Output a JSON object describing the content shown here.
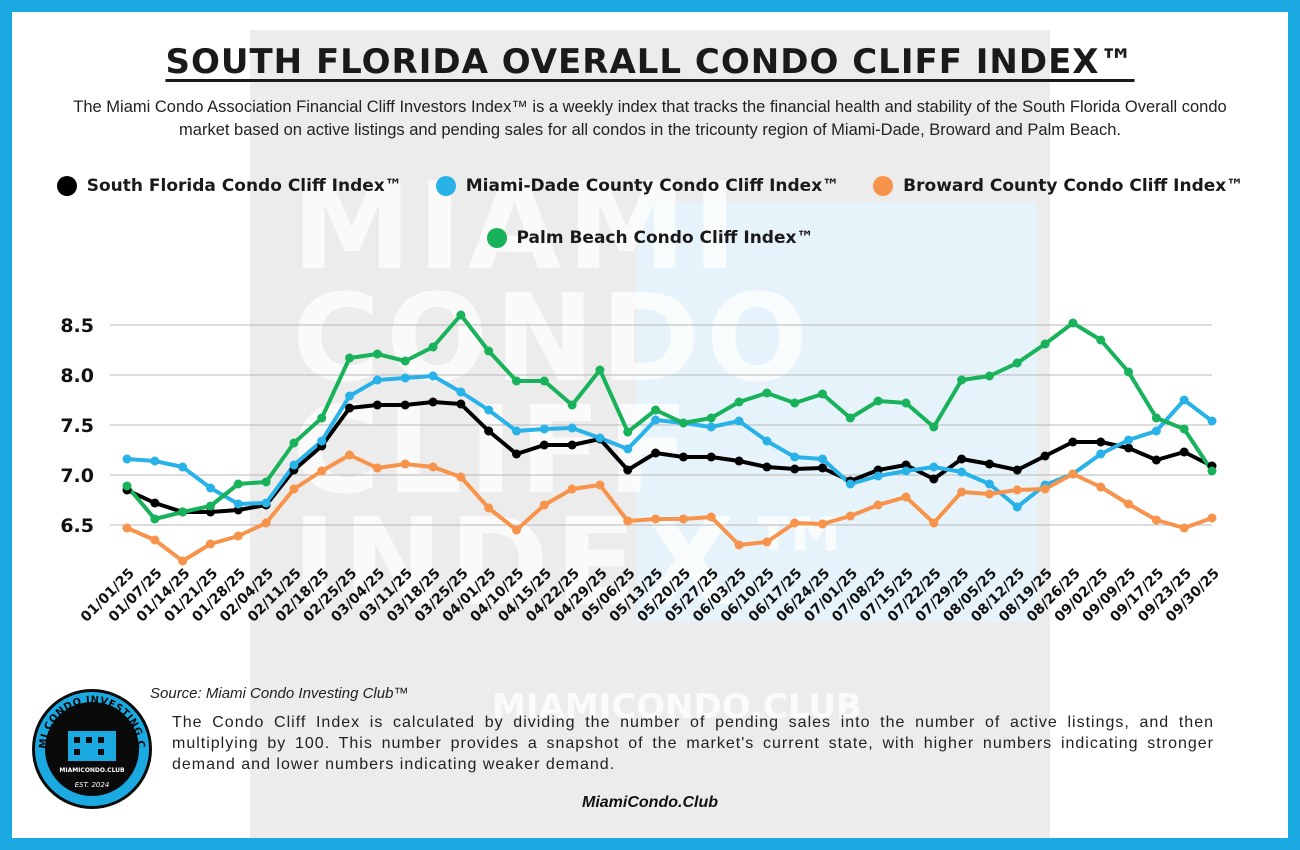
{
  "title": "SOUTH FLORIDA OVERALL CONDO CLIFF INDEX™",
  "subtitle": "The Miami Condo Association Financial Cliff Investors Index™ is a weekly index that tracks the financial health and stability of the South Florida Overall condo market based on active listings and pending sales for all condos in the tricounty region of Miami-Dade, Broward and Palm Beach.",
  "watermark": {
    "text": "MIAMI\nCONDO\nCLIFF\nINDEX™",
    "site": "MIAMICONDO.CLUB"
  },
  "source": "Source: Miami Condo Investing Club™",
  "description": "The Condo Cliff Index  is calculated by dividing the number of pending sales into the number of active listings, and then multiplying by 100. This number provides a snapshot of the market's current state, with higher numbers indicating stronger demand and lower numbers indicating weaker demand.",
  "site": "MiamiCondo.Club",
  "badge": {
    "top_text": "MIAMI CONDO INVESTING CLUB",
    "site": "MIAMICONDO.CLUB",
    "est": "EST. 2024"
  },
  "chart_data": {
    "type": "line",
    "title": "SOUTH FLORIDA OVERALL CONDO CLIFF INDEX™",
    "xlabel": "",
    "ylabel": "",
    "ylim": [
      6.2,
      8.8
    ],
    "yticks": [
      "6.5",
      "7.0",
      "7.5",
      "8.0",
      "8.5"
    ],
    "grid": true,
    "legend_position": "top-center",
    "categories": [
      "01/01/25",
      "01/07/25",
      "01/14/25",
      "01/21/25",
      "01/28/25",
      "02/04/25",
      "02/11/25",
      "02/18/25",
      "02/25/25",
      "03/04/25",
      "03/11/25",
      "03/18/25",
      "03/25/25",
      "04/01/25",
      "04/10/25",
      "04/15/25",
      "04/22/25",
      "04/29/25",
      "05/06/25",
      "05/13/25",
      "05/20/25",
      "05/27/25",
      "06/03/25",
      "06/10/25",
      "06/17/25",
      "06/24/25",
      "07/01/25",
      "07/08/25",
      "07/15/25",
      "07/22/25",
      "07/29/25",
      "08/05/25",
      "08/12/25",
      "08/19/25",
      "08/26/25",
      "09/02/25",
      "09/09/25",
      "09/17/25",
      "09/23/25",
      "09/30/25"
    ],
    "series": [
      {
        "name": "South Florida Condo Cliff Index™",
        "color": "#000000",
        "values": [
          6.85,
          6.72,
          6.63,
          6.63,
          6.65,
          6.7,
          7.05,
          7.29,
          7.67,
          7.7,
          7.7,
          7.73,
          7.71,
          7.44,
          7.21,
          7.3,
          7.3,
          7.36,
          7.05,
          7.22,
          7.18,
          7.18,
          7.14,
          7.08,
          7.06,
          7.07,
          6.94,
          7.05,
          7.1,
          6.96,
          7.16,
          7.11,
          7.05,
          7.19,
          7.33,
          7.33,
          7.27,
          7.15,
          7.23,
          7.09
        ]
      },
      {
        "name": "Miami-Dade County Condo Cliff Index™",
        "color": "#29b2e8",
        "values": [
          7.16,
          7.14,
          7.08,
          6.87,
          6.71,
          6.72,
          7.1,
          7.34,
          7.79,
          7.95,
          7.97,
          7.99,
          7.83,
          7.65,
          7.44,
          7.46,
          7.47,
          7.37,
          7.26,
          7.55,
          7.52,
          7.48,
          7.54,
          7.34,
          7.18,
          7.16,
          6.91,
          6.99,
          7.04,
          7.08,
          7.03,
          6.91,
          6.68,
          6.9,
          7.01,
          7.21,
          7.35,
          7.44,
          7.75,
          7.54
        ]
      },
      {
        "name": "Broward County Condo Cliff Index™",
        "color": "#f7934a",
        "values": [
          6.47,
          6.35,
          6.14,
          6.31,
          6.39,
          6.52,
          6.86,
          7.04,
          7.2,
          7.07,
          7.11,
          7.08,
          6.98,
          6.67,
          6.45,
          6.7,
          6.86,
          6.9,
          6.54,
          6.56,
          6.56,
          6.58,
          6.3,
          6.33,
          6.52,
          6.51,
          6.59,
          6.7,
          6.78,
          6.52,
          6.83,
          6.81,
          6.85,
          6.86,
          7.01,
          6.88,
          6.71,
          6.55,
          6.47,
          6.57
        ]
      },
      {
        "name": "Palm Beach Condo Cliff Index™",
        "color": "#17b25a",
        "values": [
          6.89,
          6.56,
          6.63,
          6.69,
          6.91,
          6.93,
          7.32,
          7.57,
          8.17,
          8.21,
          8.14,
          8.28,
          8.6,
          8.24,
          7.94,
          7.94,
          7.7,
          8.05,
          7.43,
          7.65,
          7.52,
          7.57,
          7.73,
          7.82,
          7.72,
          7.81,
          7.57,
          7.74,
          7.72,
          7.48,
          7.95,
          7.99,
          8.12,
          8.31,
          8.52,
          8.35,
          8.03,
          7.57,
          7.46,
          7.04
        ]
      }
    ]
  }
}
